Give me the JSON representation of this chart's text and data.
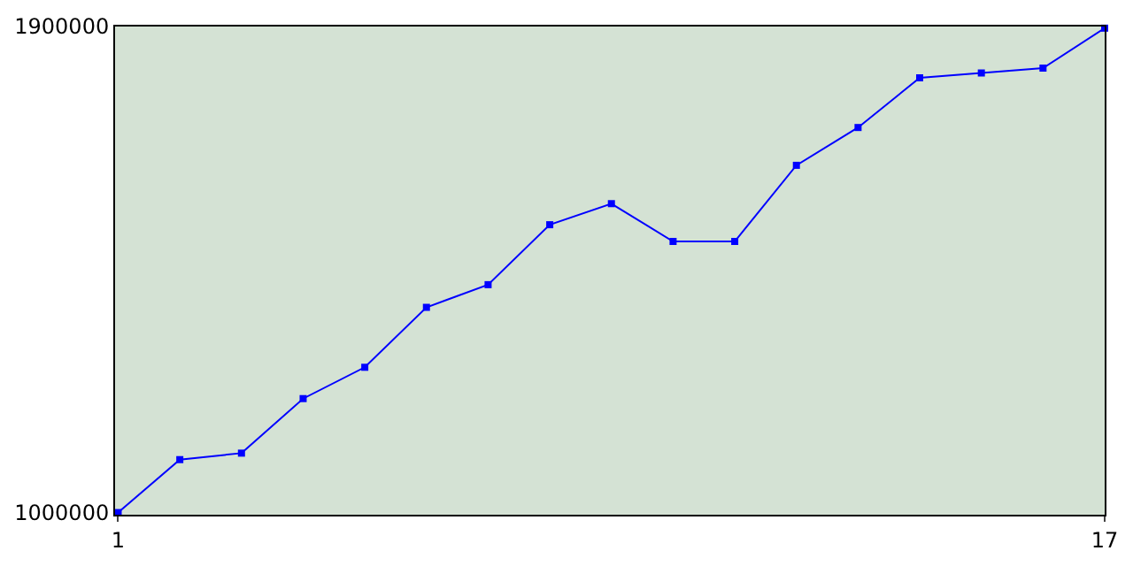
{
  "chart_data": {
    "type": "line",
    "x": [
      1,
      2,
      3,
      4,
      5,
      6,
      7,
      8,
      9,
      10,
      11,
      12,
      13,
      14,
      15,
      16,
      17
    ],
    "series": [
      {
        "color": "#0000ff",
        "values": [
          1000000,
          1098000,
          1110000,
          1211000,
          1269000,
          1380000,
          1422000,
          1533000,
          1572000,
          1502000,
          1502000,
          1643000,
          1713000,
          1805000,
          1814000,
          1823000,
          1897000
        ]
      }
    ],
    "xlim": [
      0.95,
      17
    ],
    "xticks": [
      1,
      17
    ],
    "ylim": [
      996000,
      1900000
    ],
    "yticks": [
      1000000,
      1900000
    ],
    "grid": false,
    "legend": false,
    "marker": "square",
    "line_style": "solid"
  }
}
